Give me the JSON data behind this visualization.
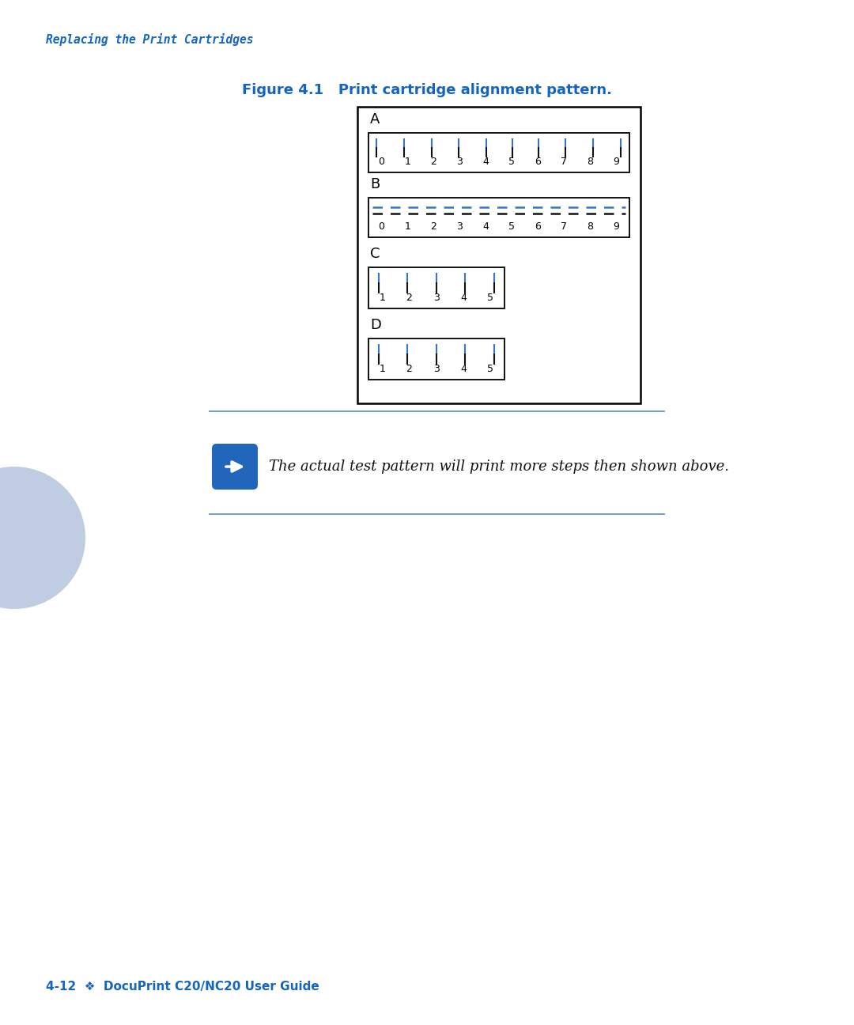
{
  "page_bg": "#ffffff",
  "header_text": "Replacing the Print Cartridges",
  "header_color": "#1565C0",
  "figure_title": "Figure 4.1   Print cartridge alignment pattern.",
  "figure_title_color": "#1565C0",
  "pattern_color_blue": "#3377CC",
  "pattern_color_black": "#111111",
  "note_text": "The actual test pattern will print more steps then shown above.",
  "note_color": "#111111",
  "separator_color": "#6699CC",
  "footer_text": "4-12  ❖  DocuPrint C20/NC20 User Guide",
  "footer_color": "#1565C0",
  "A_offsets": [
    -0.45,
    -0.3,
    -0.2,
    -0.1,
    0.0,
    0.0,
    0.0,
    0.12,
    0.25,
    0.38
  ],
  "C_offsets": [
    -0.3,
    -0.15,
    0.0,
    0.15,
    0.3
  ],
  "D_offsets": [
    -0.3,
    -0.15,
    0.0,
    0.15,
    0.3
  ]
}
